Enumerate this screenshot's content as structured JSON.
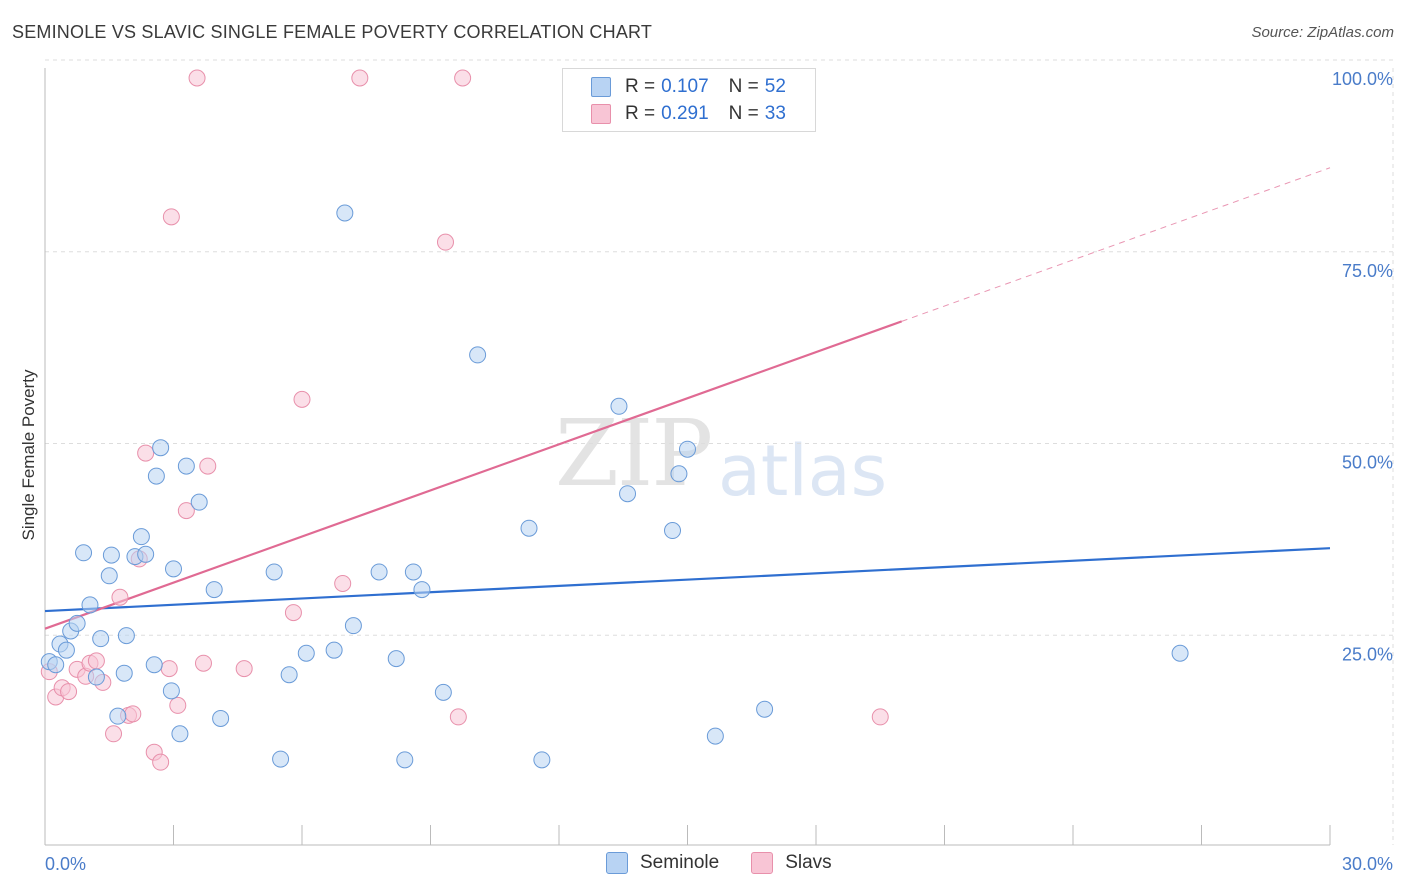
{
  "title": "SEMINOLE VS SLAVIC SINGLE FEMALE POVERTY CORRELATION CHART",
  "source": "Source: ZipAtlas.com",
  "watermark": {
    "zip": "ZIP",
    "atlas": "atlas"
  },
  "legend": {
    "seminole": {
      "r_label": "R = ",
      "r_value": "0.107",
      "n_label": "N = ",
      "n_value": "52"
    },
    "slavs": {
      "r_label": "R = ",
      "r_value": "0.291",
      "n_label": "N = ",
      "n_value": "33"
    }
  },
  "bottom_legend": {
    "seminole": "Seminole",
    "slavs": "Slavs"
  },
  "colors": {
    "seminole_fill": "#b8d3f3",
    "seminole_stroke": "#6a9bd8",
    "seminole_line": "#2f6fd0",
    "slavs_fill": "#f8c5d5",
    "slavs_stroke": "#e890ab",
    "slavs_line": "#e06a93"
  },
  "chart_data": {
    "type": "scatter",
    "title": "SEMINOLE VS SLAVIC SINGLE FEMALE POVERTY CORRELATION CHART",
    "xlabel": "",
    "ylabel": "Single Female Poverty",
    "xlim": [
      0,
      30
    ],
    "ylim": [
      0,
      100
    ],
    "x_tick_labels": [
      {
        "value": 0,
        "label": "0.0%"
      },
      {
        "value": 30,
        "label": "30.0%"
      }
    ],
    "y_tick_labels": [
      {
        "value": 25,
        "label": "25.0%"
      },
      {
        "value": 50,
        "label": "50.0%"
      },
      {
        "value": 75,
        "label": "75.0%"
      },
      {
        "value": 100,
        "label": "100.0%"
      }
    ],
    "series": [
      {
        "name": "Seminole",
        "trend": {
          "x0": 0,
          "y0": 30.5,
          "x1": 30,
          "y1": 38.7,
          "dashed_from": null
        },
        "points": [
          [
            0.1,
            23.9
          ],
          [
            0.25,
            23.5
          ],
          [
            0.35,
            26.2
          ],
          [
            0.5,
            25.4
          ],
          [
            0.6,
            27.9
          ],
          [
            0.75,
            28.9
          ],
          [
            0.9,
            38.1
          ],
          [
            1.05,
            31.3
          ],
          [
            1.2,
            21.9
          ],
          [
            1.3,
            26.9
          ],
          [
            1.5,
            35.1
          ],
          [
            1.55,
            37.8
          ],
          [
            1.7,
            16.8
          ],
          [
            1.85,
            22.4
          ],
          [
            1.9,
            27.3
          ],
          [
            2.1,
            37.6
          ],
          [
            2.25,
            40.2
          ],
          [
            2.35,
            37.9
          ],
          [
            2.55,
            23.5
          ],
          [
            2.6,
            48.1
          ],
          [
            2.7,
            51.8
          ],
          [
            2.95,
            20.1
          ],
          [
            3.0,
            36.0
          ],
          [
            3.15,
            14.5
          ],
          [
            3.3,
            49.4
          ],
          [
            3.6,
            44.7
          ],
          [
            3.95,
            33.3
          ],
          [
            4.1,
            16.5
          ],
          [
            5.35,
            35.6
          ],
          [
            5.5,
            11.2
          ],
          [
            5.7,
            22.2
          ],
          [
            6.1,
            25.0
          ],
          [
            6.75,
            25.4
          ],
          [
            7.0,
            82.4
          ],
          [
            7.2,
            28.6
          ],
          [
            7.8,
            35.6
          ],
          [
            8.2,
            24.3
          ],
          [
            8.4,
            11.1
          ],
          [
            8.6,
            35.6
          ],
          [
            8.8,
            33.3
          ],
          [
            9.3,
            19.9
          ],
          [
            10.1,
            63.9
          ],
          [
            11.3,
            41.3
          ],
          [
            11.6,
            11.1
          ],
          [
            13.4,
            57.2
          ],
          [
            13.6,
            45.8
          ],
          [
            14.65,
            41.0
          ],
          [
            14.8,
            48.4
          ],
          [
            15.0,
            51.6
          ],
          [
            15.65,
            14.2
          ],
          [
            16.8,
            17.7
          ],
          [
            26.5,
            25.0
          ]
        ]
      },
      {
        "name": "Slavs",
        "trend": {
          "x0": 0,
          "y0": 28.2,
          "x1": 30,
          "y1": 88.3,
          "dashed_from": 20.0
        },
        "points": [
          [
            0.1,
            22.6
          ],
          [
            0.25,
            19.3
          ],
          [
            0.4,
            20.5
          ],
          [
            0.55,
            20.0
          ],
          [
            0.75,
            22.9
          ],
          [
            0.95,
            22.0
          ],
          [
            1.05,
            23.7
          ],
          [
            1.2,
            24.0
          ],
          [
            1.35,
            21.2
          ],
          [
            1.6,
            14.5
          ],
          [
            1.75,
            32.3
          ],
          [
            1.95,
            16.9
          ],
          [
            2.05,
            17.1
          ],
          [
            2.2,
            37.3
          ],
          [
            2.35,
            51.1
          ],
          [
            2.55,
            12.1
          ],
          [
            2.7,
            10.8
          ],
          [
            2.9,
            23.0
          ],
          [
            2.95,
            81.9
          ],
          [
            3.1,
            18.2
          ],
          [
            3.3,
            43.6
          ],
          [
            3.55,
            100.0
          ],
          [
            3.7,
            23.7
          ],
          [
            3.8,
            49.4
          ],
          [
            4.65,
            23.0
          ],
          [
            5.8,
            30.3
          ],
          [
            6.0,
            58.1
          ],
          [
            6.95,
            34.1
          ],
          [
            7.35,
            100.0
          ],
          [
            9.35,
            78.6
          ],
          [
            9.65,
            16.7
          ],
          [
            9.75,
            100.0
          ],
          [
            19.5,
            16.7
          ]
        ]
      }
    ]
  }
}
